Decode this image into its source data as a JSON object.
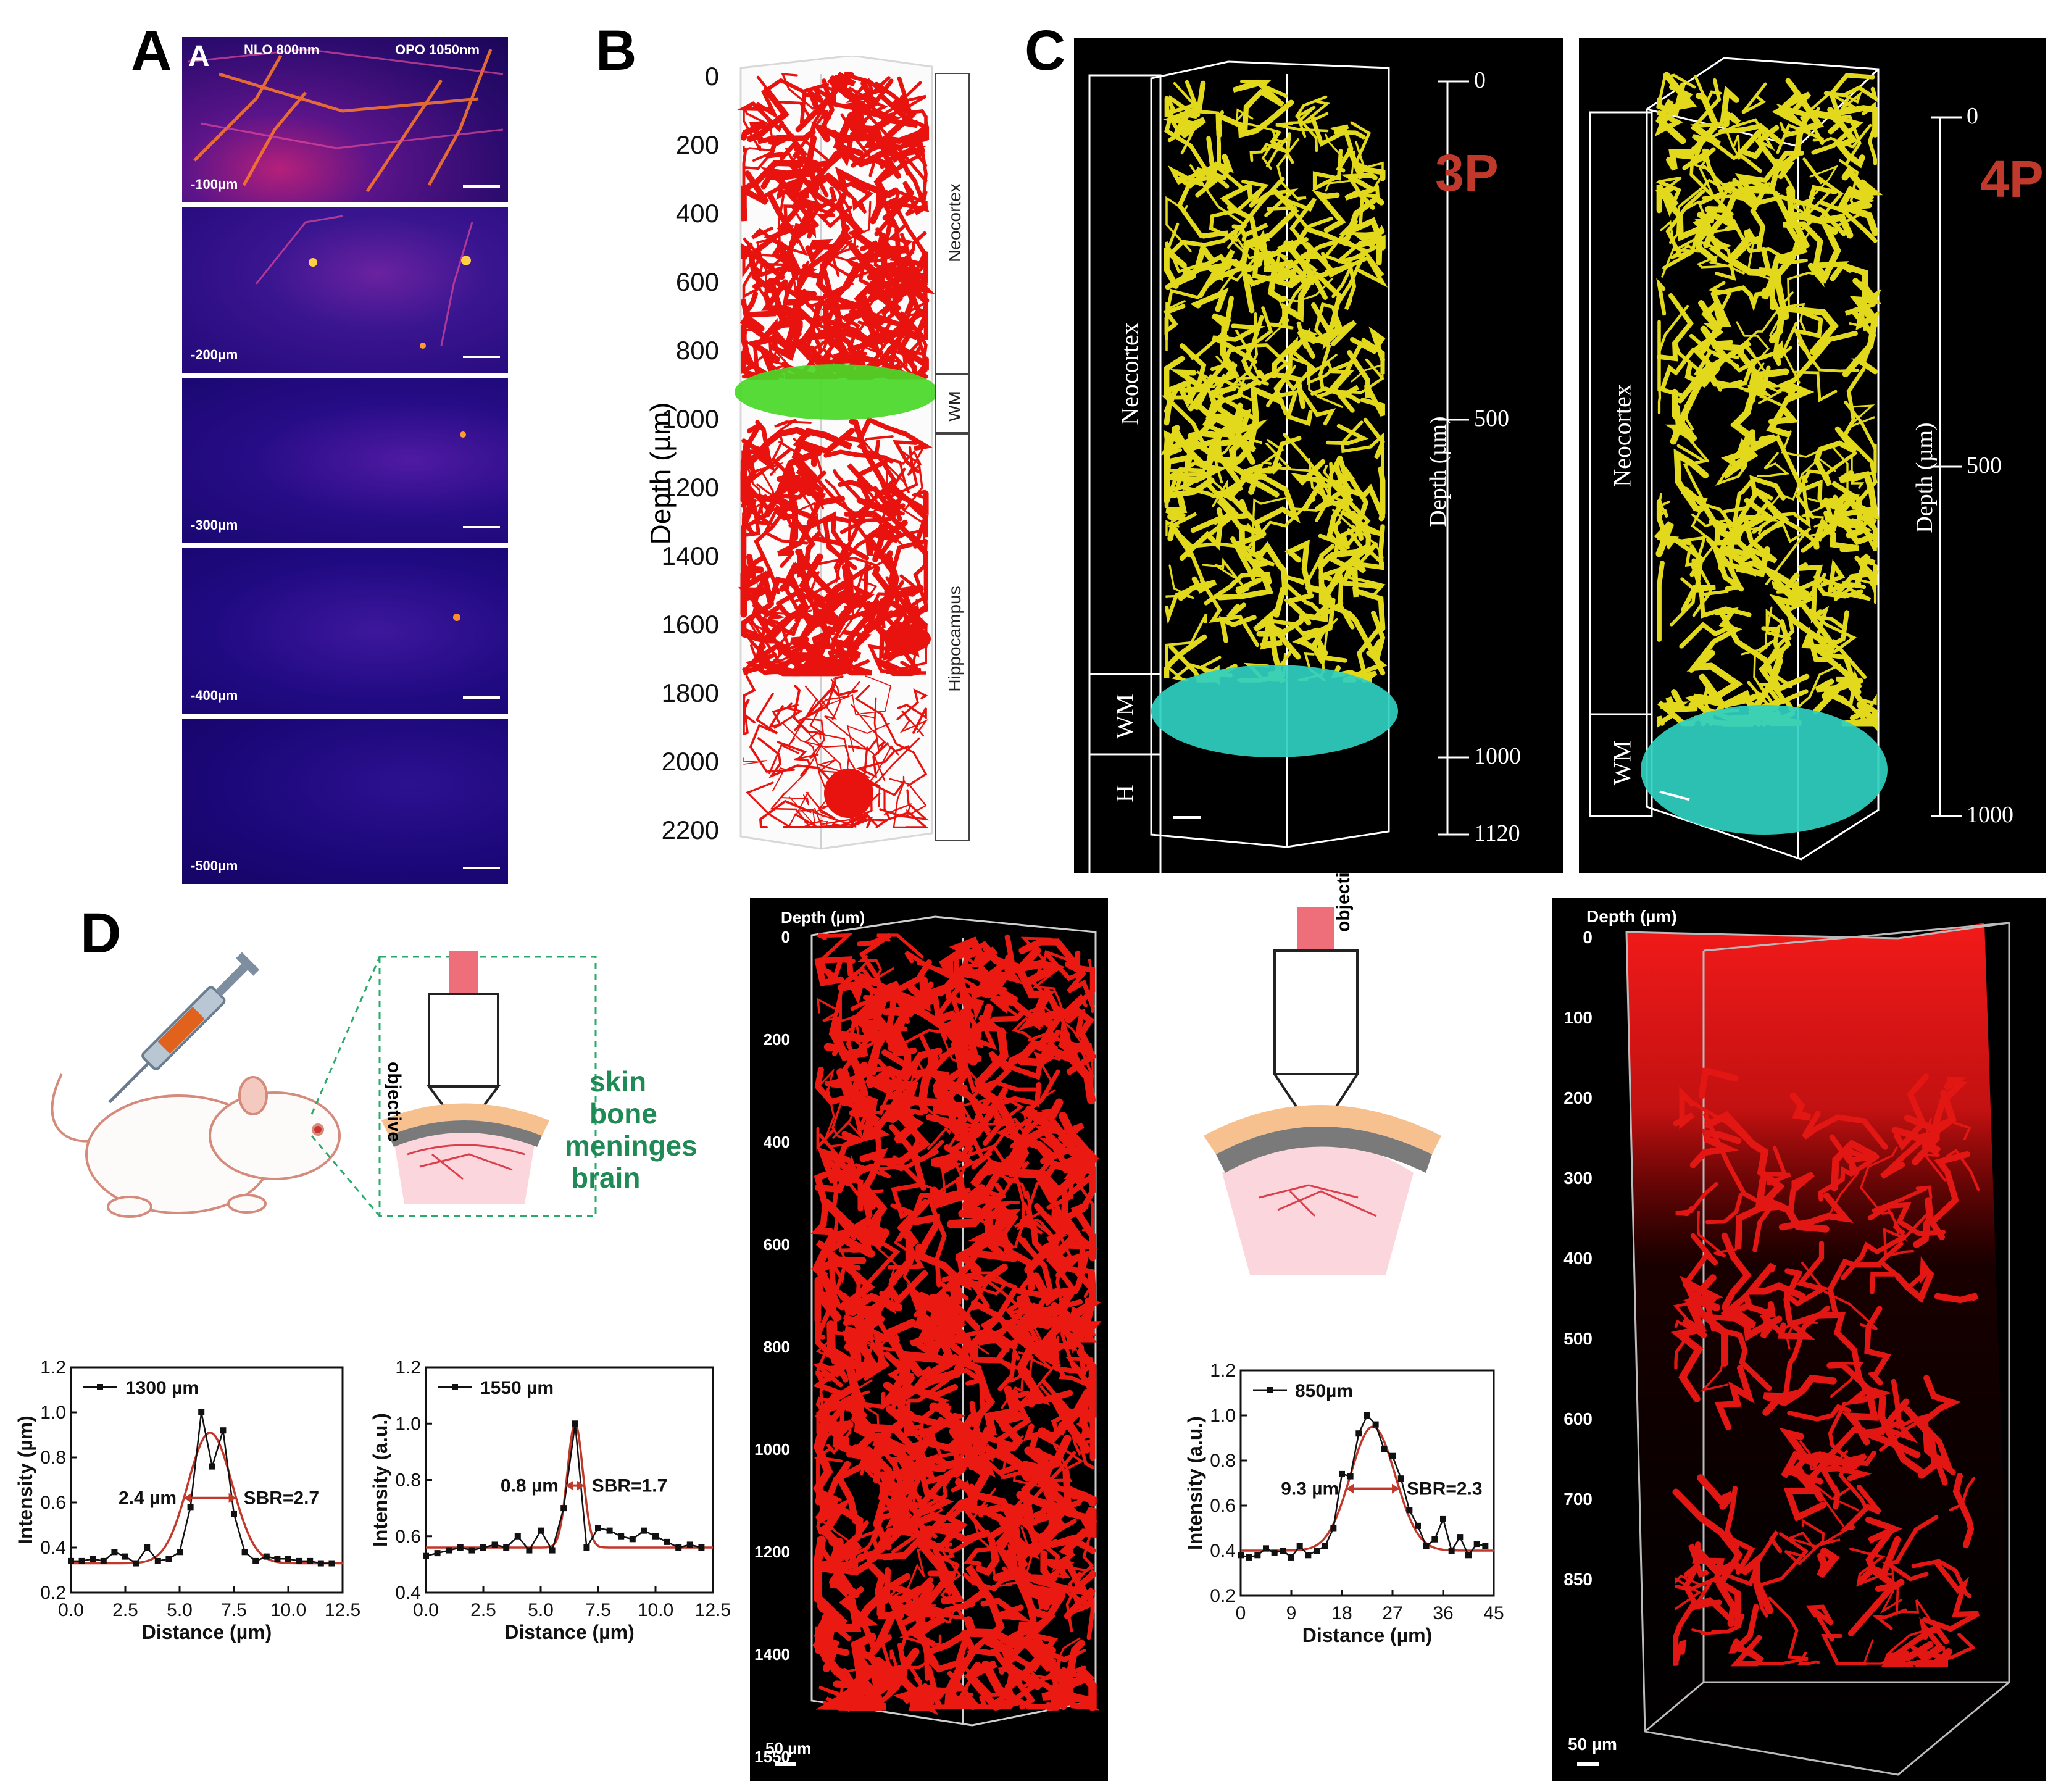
{
  "panelA": {
    "letter": "A",
    "inner_letter": "A",
    "header_left": "NLO 800nm",
    "header_right": "OPO 1050nm",
    "depths": [
      "-100µm",
      "-200µm",
      "-300µm",
      "-400µm",
      "-500µm"
    ]
  },
  "panelB": {
    "letter": "B",
    "ylabel": "Depth (µm)",
    "ticks": [
      "0",
      "200",
      "400",
      "600",
      "800",
      "1000",
      "1200",
      "1400",
      "1600",
      "1800",
      "2000",
      "2200"
    ],
    "regions": [
      "Neocortex",
      "WM",
      "Hippocampus"
    ],
    "colors": {
      "vessel": "#e8120e",
      "wm": "#48d828"
    }
  },
  "panelC": {
    "letter": "C",
    "left": {
      "mode": "3P",
      "regions": [
        "Neocortex",
        "WM",
        "H"
      ],
      "ylabel": "Depth (µm)",
      "ticks": [
        "0",
        "500",
        "1000",
        "1120"
      ]
    },
    "right": {
      "mode": "4P",
      "regions": [
        "Neocortex",
        "WM"
      ],
      "ylabel": "Depth (µm)",
      "ticks": [
        "0",
        "500",
        "1000"
      ]
    },
    "colors": {
      "vessel": "#e2d91c",
      "wm": "#2fd0c0",
      "label": "#c0392b"
    }
  },
  "panelD": {
    "letter": "D",
    "schematic_labels": [
      "skin",
      "bone",
      "meninges",
      "brain"
    ],
    "objective": "objective",
    "label_color": "#1f8a55",
    "stack1": {
      "title": "Depth (µm)",
      "ticks": [
        "0",
        "200",
        "400",
        "600",
        "800",
        "1000",
        "1200",
        "1400",
        "1550"
      ],
      "scale": "50 µm"
    },
    "stack2": {
      "title": "Depth (µm)",
      "ticks": [
        "0",
        "100",
        "200",
        "300",
        "400",
        "500",
        "600",
        "700",
        "850"
      ],
      "scale": "50 µm"
    }
  },
  "chart_data": [
    {
      "type": "line",
      "title": "",
      "xlabel": "Distance (µm)",
      "ylabel": "Intensity (µm)",
      "legend": "1300 µm",
      "xlim": [
        0,
        12.5
      ],
      "ylim": [
        0.2,
        1.2
      ],
      "xticks": [
        "0.0",
        "2.5",
        "5.0",
        "7.5",
        "10.0",
        "12.5"
      ],
      "yticks": [
        "0.2",
        "0.4",
        "0.6",
        "0.8",
        "1.0",
        "1.2"
      ],
      "annotations": [
        "2.4 µm",
        "SBR=2.7"
      ],
      "series": [
        {
          "name": "1300 µm",
          "x": [
            0,
            0.5,
            1,
            1.5,
            2,
            2.5,
            3,
            3.5,
            4,
            4.5,
            5,
            5.5,
            6,
            6.5,
            7,
            7.5,
            8,
            8.5,
            9,
            9.5,
            10,
            10.5,
            11,
            11.5,
            12
          ],
          "y": [
            0.34,
            0.34,
            0.35,
            0.34,
            0.38,
            0.36,
            0.33,
            0.4,
            0.34,
            0.35,
            0.38,
            0.58,
            1.0,
            0.76,
            0.92,
            0.55,
            0.38,
            0.34,
            0.36,
            0.35,
            0.35,
            0.34,
            0.34,
            0.33,
            0.33
          ]
        },
        {
          "fit": true,
          "mu": 6.4,
          "sigma": 1.02,
          "base": 0.33,
          "amp": 0.58
        }
      ]
    },
    {
      "type": "line",
      "title": "",
      "xlabel": "Distance (µm)",
      "ylabel": "Intensity (a.u.)",
      "legend": "1550 µm",
      "xlim": [
        0,
        12.5
      ],
      "ylim": [
        0.4,
        1.2
      ],
      "xticks": [
        "0.0",
        "2.5",
        "5.0",
        "7.5",
        "10.0",
        "12.5"
      ],
      "yticks": [
        "0.4",
        "0.6",
        "0.8",
        "1.0",
        "1.2"
      ],
      "annotations": [
        "0.8 µm",
        "SBR=1.7"
      ],
      "series": [
        {
          "name": "1550 µm",
          "x": [
            0,
            0.5,
            1,
            1.5,
            2,
            2.5,
            3,
            3.5,
            4,
            4.5,
            5,
            5.5,
            6,
            6.5,
            7,
            7.5,
            8,
            8.5,
            9,
            9.5,
            10,
            10.5,
            11,
            11.5,
            12
          ],
          "y": [
            0.53,
            0.54,
            0.55,
            0.56,
            0.55,
            0.56,
            0.57,
            0.56,
            0.6,
            0.55,
            0.62,
            0.55,
            0.7,
            1.0,
            0.56,
            0.63,
            0.62,
            0.6,
            0.59,
            0.62,
            0.6,
            0.58,
            0.56,
            0.57,
            0.56
          ]
        },
        {
          "fit": true,
          "mu": 6.5,
          "sigma": 0.34,
          "base": 0.56,
          "amp": 0.44
        }
      ]
    },
    {
      "type": "line",
      "title": "",
      "xlabel": "Distance (µm)",
      "ylabel": "Intensity (a.u.)",
      "legend": "850µm",
      "xlim": [
        0,
        45
      ],
      "ylim": [
        0.2,
        1.2
      ],
      "xticks": [
        "0",
        "9",
        "18",
        "27",
        "36",
        "45"
      ],
      "yticks": [
        "0.2",
        "0.4",
        "0.6",
        "0.8",
        "1.0",
        "1.2"
      ],
      "annotations": [
        "9.3 µm",
        "SBR=2.3"
      ],
      "series": [
        {
          "name": "850µm",
          "x": [
            0,
            1.5,
            3,
            4.5,
            6,
            7.5,
            9,
            10.5,
            12,
            13.5,
            15,
            16.5,
            18,
            19.5,
            21,
            22.5,
            24,
            25.5,
            27,
            28.5,
            30,
            31.5,
            33,
            34.5,
            36,
            37.5,
            39,
            40.5,
            42,
            43.5
          ],
          "y": [
            0.38,
            0.37,
            0.38,
            0.41,
            0.39,
            0.4,
            0.37,
            0.42,
            0.38,
            0.4,
            0.42,
            0.5,
            0.74,
            0.73,
            0.92,
            1.0,
            0.96,
            0.85,
            0.82,
            0.72,
            0.58,
            0.51,
            0.42,
            0.45,
            0.54,
            0.4,
            0.46,
            0.38,
            0.43,
            0.42
          ]
        },
        {
          "fit": true,
          "mu": 23.5,
          "sigma": 4.0,
          "base": 0.4,
          "amp": 0.55
        }
      ]
    }
  ]
}
